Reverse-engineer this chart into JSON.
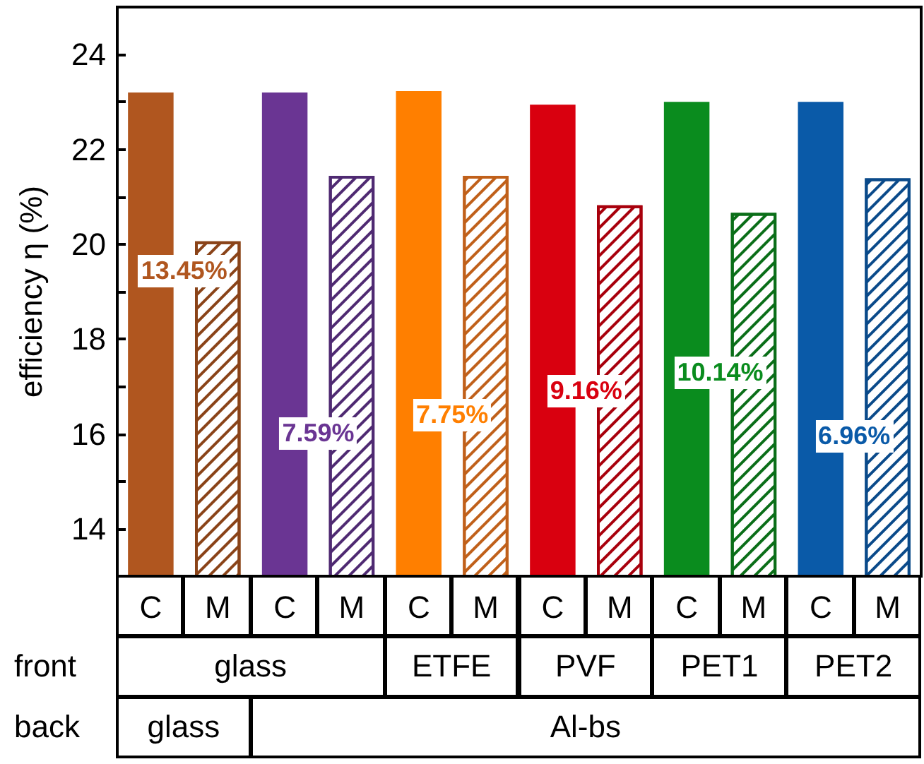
{
  "chart_data": {
    "type": "bar",
    "ylabel": "efficiency η (%)",
    "categories": [
      "C",
      "M",
      "C",
      "M",
      "C",
      "M",
      "C",
      "M",
      "C",
      "M",
      "C",
      "M"
    ],
    "series": [
      {
        "colors": [
          "#b0561f",
          "#b0561f",
          "#6a3593",
          "#6a3593",
          "#ff7f00",
          "#ff7f00",
          "#d9000f",
          "#d9000f",
          "#0a8c1e",
          "#0a8c1e",
          "#0a5aa8",
          "#0a5aa8"
        ],
        "values": [
          23.2,
          null,
          23.2,
          null,
          23.23,
          null,
          22.94,
          null,
          23.0,
          null,
          23.0,
          null
        ]
      },
      {
        "colors": [
          "#8a4318",
          "#8a4318",
          "#4f2a72",
          "#4f2a72",
          "#c0601a",
          "#c0601a",
          "#a8000c",
          "#a8000c",
          "#0a6e18",
          "#0a6e18",
          "#0a4a8a",
          "#0a4a8a"
        ],
        "values": [
          null,
          20.06,
          null,
          21.44,
          null,
          21.44,
          null,
          20.82,
          null,
          20.66,
          null,
          21.39
        ]
      }
    ],
    "ylim": [
      13,
      25
    ],
    "yticks": [
      14,
      {
        "value": 15,
        "label": null
      },
      16,
      {
        "value": 17,
        "label": null
      },
      18,
      {
        "value": 19,
        "label": null
      },
      20,
      {
        "value": 21,
        "label": null
      },
      22,
      {
        "value": 23,
        "label": null
      },
      24
    ],
    "grid": false,
    "annotations": [
      "13.45%",
      "7.59%",
      "7.75%",
      "9.16%",
      "10.14%",
      "6.96%",
      "front",
      "glass",
      "ETFE",
      "PVF",
      "PET1",
      "PET2",
      "back",
      "glass",
      "Al-bs"
    ]
  }
}
